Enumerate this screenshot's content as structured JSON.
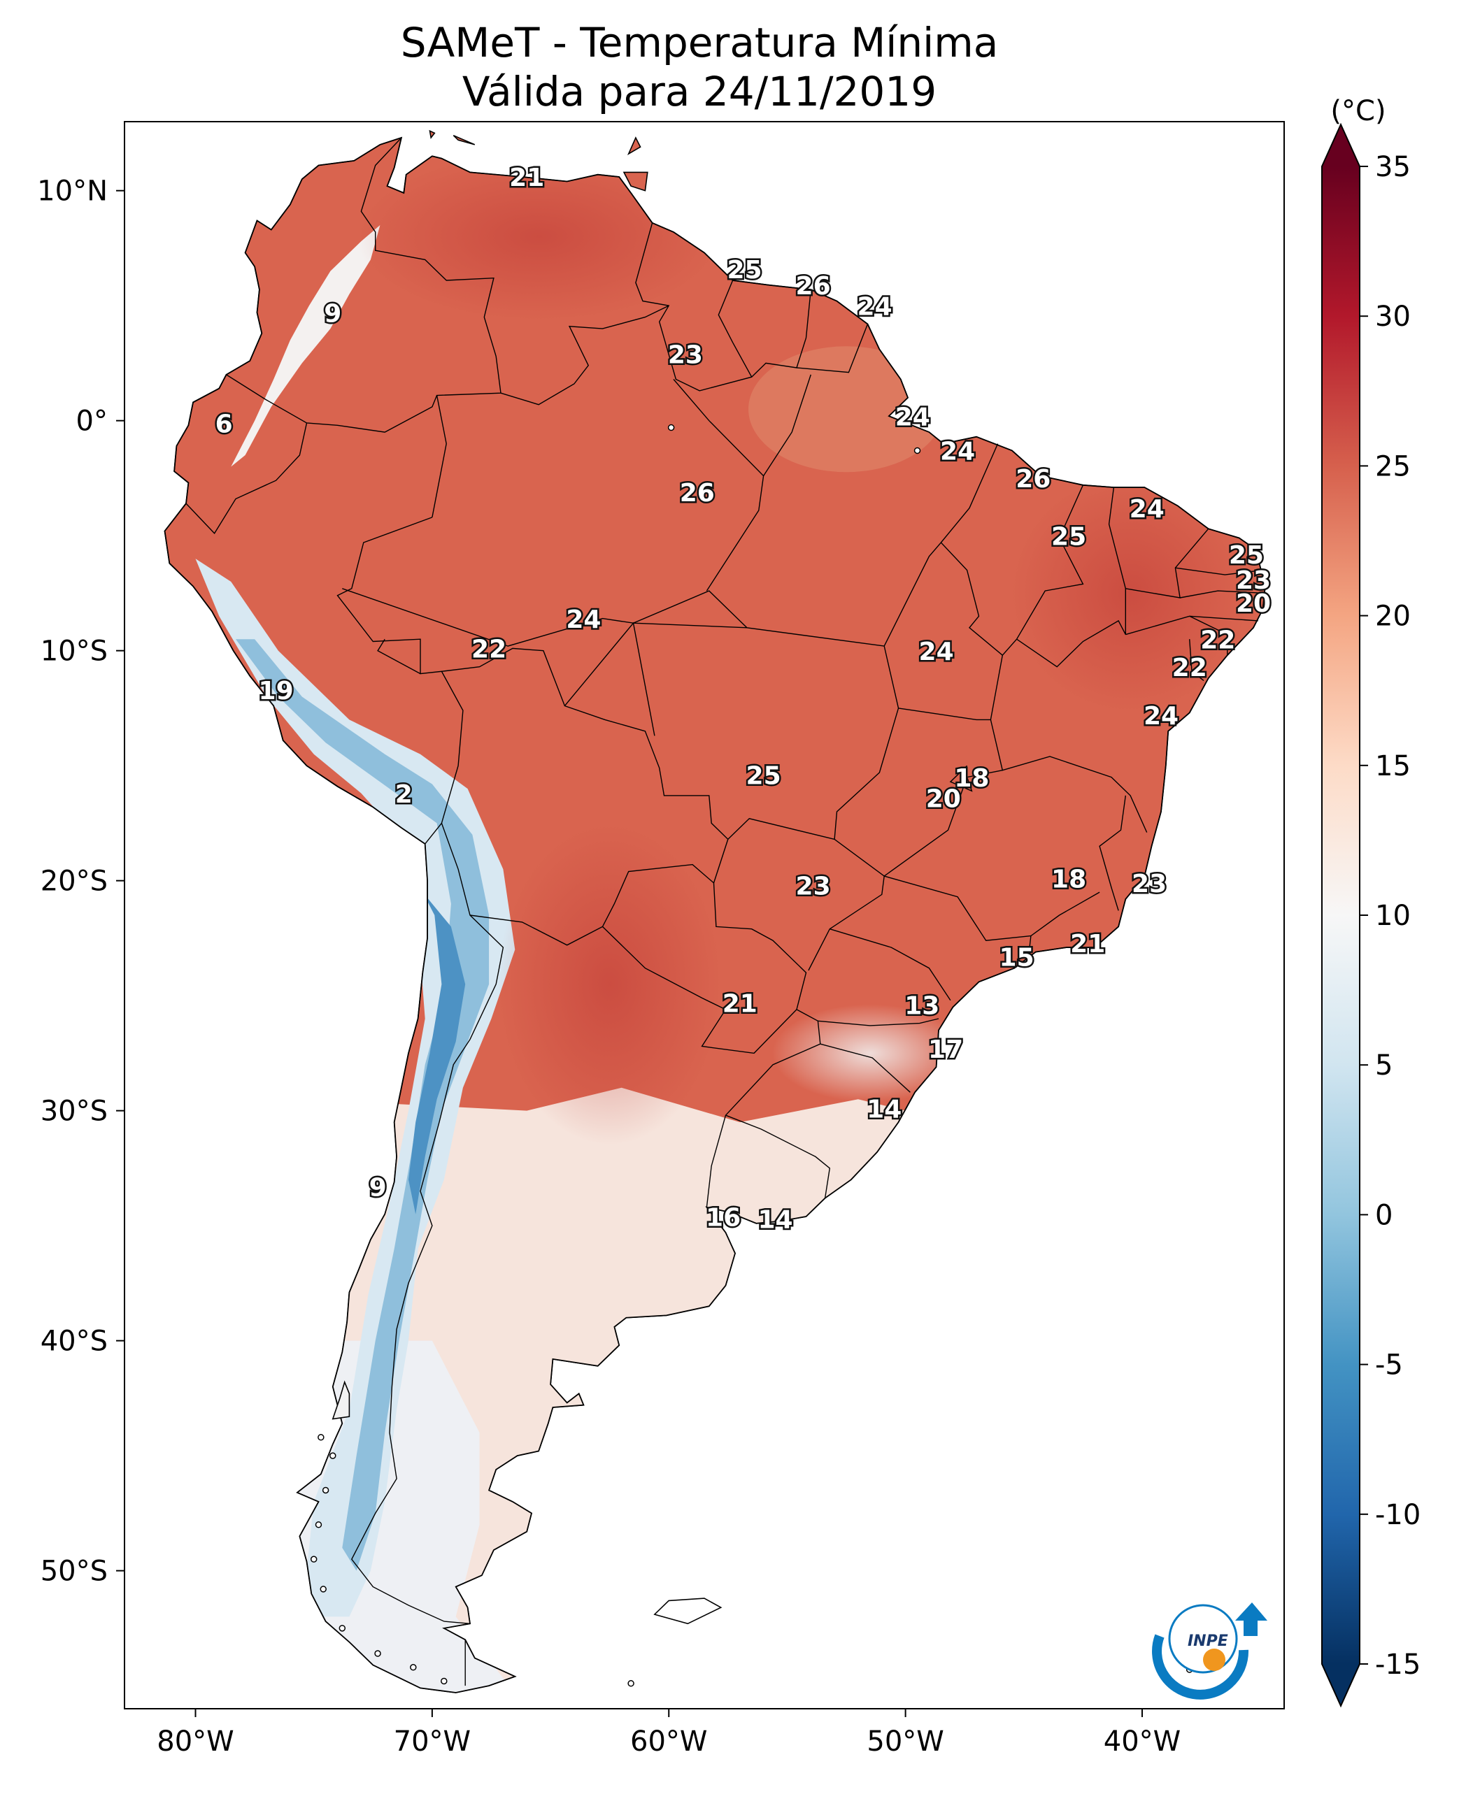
{
  "title": {
    "line1": "SAMeT - Temperatura Mínima",
    "line2": "Válida para 24/11/2019"
  },
  "units_label": "(°C)",
  "map": {
    "lon_range": [
      -83,
      -34
    ],
    "lat_range": [
      -56,
      13
    ],
    "lon_ticks": [
      {
        "lon": -80,
        "label": "80°W"
      },
      {
        "lon": -70,
        "label": "70°W"
      },
      {
        "lon": -60,
        "label": "60°W"
      },
      {
        "lon": -50,
        "label": "50°W"
      },
      {
        "lon": -40,
        "label": "40°W"
      }
    ],
    "lat_ticks": [
      {
        "lat": 10,
        "label": "10°N"
      },
      {
        "lat": 0,
        "label": "0°"
      },
      {
        "lat": -10,
        "label": "10°S"
      },
      {
        "lat": -20,
        "label": "20°S"
      },
      {
        "lat": -30,
        "label": "30°S"
      },
      {
        "lat": -40,
        "label": "40°S"
      },
      {
        "lat": -50,
        "label": "50°S"
      }
    ]
  },
  "colorbar": {
    "min": -17.5,
    "max": 37.5,
    "ticks": [
      {
        "value": 35,
        "label": "35"
      },
      {
        "value": 30,
        "label": "30"
      },
      {
        "value": 25,
        "label": "25"
      },
      {
        "value": 20,
        "label": "20"
      },
      {
        "value": 15,
        "label": "15"
      },
      {
        "value": 10,
        "label": "10"
      },
      {
        "value": 5,
        "label": "5"
      },
      {
        "value": 0,
        "label": "0"
      },
      {
        "value": -5,
        "label": "-5"
      },
      {
        "value": -10,
        "label": "-10"
      },
      {
        "value": -15,
        "label": "-15"
      }
    ],
    "colors": [
      "#053061",
      "#2166ac",
      "#4393c3",
      "#92c5de",
      "#d1e5f0",
      "#f7f7f7",
      "#fddbc7",
      "#f4a582",
      "#d6604d",
      "#b2182b",
      "#67001f"
    ]
  },
  "temperature_labels": [
    {
      "lon": -66.0,
      "lat": 10.5,
      "value": "21"
    },
    {
      "lon": -56.8,
      "lat": 6.5,
      "value": "25"
    },
    {
      "lon": -53.9,
      "lat": 5.8,
      "value": "26"
    },
    {
      "lon": -51.3,
      "lat": 4.9,
      "value": "24"
    },
    {
      "lon": -74.2,
      "lat": 4.6,
      "value": "9"
    },
    {
      "lon": -59.3,
      "lat": 2.8,
      "value": "23"
    },
    {
      "lon": -78.8,
      "lat": -0.2,
      "value": "6"
    },
    {
      "lon": -49.7,
      "lat": 0.1,
      "value": "24"
    },
    {
      "lon": -47.8,
      "lat": -1.4,
      "value": "24"
    },
    {
      "lon": -44.6,
      "lat": -2.6,
      "value": "26"
    },
    {
      "lon": -58.8,
      "lat": -3.2,
      "value": "26"
    },
    {
      "lon": -39.8,
      "lat": -3.9,
      "value": "24"
    },
    {
      "lon": -43.1,
      "lat": -5.1,
      "value": "25"
    },
    {
      "lon": -35.6,
      "lat": -5.9,
      "value": "25"
    },
    {
      "lon": -35.3,
      "lat": -7.0,
      "value": "23"
    },
    {
      "lon": -35.3,
      "lat": -8.0,
      "value": "20"
    },
    {
      "lon": -63.6,
      "lat": -8.7,
      "value": "24"
    },
    {
      "lon": -67.6,
      "lat": -10.0,
      "value": "22"
    },
    {
      "lon": -48.7,
      "lat": -10.1,
      "value": "24"
    },
    {
      "lon": -36.8,
      "lat": -9.6,
      "value": "22"
    },
    {
      "lon": -38.0,
      "lat": -10.8,
      "value": "22"
    },
    {
      "lon": -76.6,
      "lat": -11.8,
      "value": "19"
    },
    {
      "lon": -39.2,
      "lat": -12.9,
      "value": "24"
    },
    {
      "lon": -56.0,
      "lat": -15.5,
      "value": "25"
    },
    {
      "lon": -47.2,
      "lat": -15.6,
      "value": "18"
    },
    {
      "lon": -48.4,
      "lat": -16.5,
      "value": "20"
    },
    {
      "lon": -71.2,
      "lat": -16.3,
      "value": "2"
    },
    {
      "lon": -53.9,
      "lat": -20.3,
      "value": "23"
    },
    {
      "lon": -43.1,
      "lat": -20.0,
      "value": "18"
    },
    {
      "lon": -39.7,
      "lat": -20.2,
      "value": "23"
    },
    {
      "lon": -42.3,
      "lat": -22.8,
      "value": "21"
    },
    {
      "lon": -45.3,
      "lat": -23.4,
      "value": "15"
    },
    {
      "lon": -57.0,
      "lat": -25.4,
      "value": "21"
    },
    {
      "lon": -49.3,
      "lat": -25.5,
      "value": "13"
    },
    {
      "lon": -48.3,
      "lat": -27.4,
      "value": "17"
    },
    {
      "lon": -50.9,
      "lat": -30.0,
      "value": "14"
    },
    {
      "lon": -72.3,
      "lat": -33.4,
      "value": "9"
    },
    {
      "lon": -57.7,
      "lat": -34.7,
      "value": "16"
    },
    {
      "lon": -55.5,
      "lat": -34.8,
      "value": "14"
    }
  ],
  "logo": {
    "text": "INPE"
  }
}
